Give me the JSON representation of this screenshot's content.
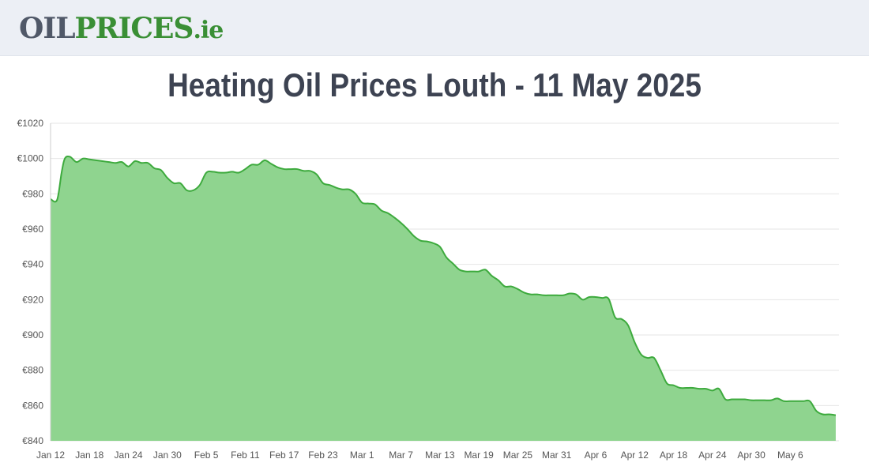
{
  "logo": {
    "part1": "OIL",
    "part2": "PRICES",
    "part3": ".ie"
  },
  "colors": {
    "line": "#3daa3d",
    "fill": "#8fd48f",
    "grid": "#e6e6e6",
    "title": "#3d4352"
  },
  "chart_data": {
    "type": "area",
    "title": "Heating Oil Prices Louth - 11 May 2025",
    "xlabel": "",
    "ylabel": "",
    "ylim": [
      840,
      1020
    ],
    "grid": true,
    "y_ticks": [
      "€1020",
      "€1000",
      "€980",
      "€960",
      "€940",
      "€920",
      "€900",
      "€880",
      "€860",
      "€840"
    ],
    "x_ticks": [
      "Jan 12",
      "Jan 18",
      "Jan 24",
      "Jan 30",
      "Feb 5",
      "Feb 11",
      "Feb 17",
      "Feb 23",
      "Mar 1",
      "Mar 7",
      "Mar 13",
      "Mar 19",
      "Mar 25",
      "Mar 31",
      "Apr 6",
      "Apr 12",
      "Apr 18",
      "Apr 24",
      "Apr 30",
      "May 6"
    ],
    "x_start": "2025-01-12",
    "series": [
      {
        "values": [
          [
            0,
            977
          ],
          [
            1,
            976.5
          ],
          [
            1.7,
            992
          ],
          [
            2.2,
            1000
          ],
          [
            3,
            1001
          ],
          [
            4,
            998
          ],
          [
            5,
            1000
          ],
          [
            6,
            999.5
          ],
          [
            7,
            999
          ],
          [
            8,
            998.5
          ],
          [
            9,
            998
          ],
          [
            10,
            997.5
          ],
          [
            11,
            998
          ],
          [
            12,
            995.5
          ],
          [
            13,
            998.5
          ],
          [
            14,
            997.5
          ],
          [
            15,
            997.5
          ],
          [
            16,
            994.5
          ],
          [
            17,
            993.5
          ],
          [
            18,
            989
          ],
          [
            19,
            986
          ],
          [
            20,
            986
          ],
          [
            21,
            982
          ],
          [
            22,
            982
          ],
          [
            23,
            985
          ],
          [
            24,
            992
          ],
          [
            25,
            992.5
          ],
          [
            26,
            992
          ],
          [
            27,
            992
          ],
          [
            28,
            992.5
          ],
          [
            29,
            992
          ],
          [
            30,
            994
          ],
          [
            31,
            996.5
          ],
          [
            32,
            996.5
          ],
          [
            33,
            999
          ],
          [
            34,
            997
          ],
          [
            35,
            995
          ],
          [
            36,
            994
          ],
          [
            37,
            994
          ],
          [
            38,
            994
          ],
          [
            39,
            993
          ],
          [
            40,
            993
          ],
          [
            41,
            991
          ],
          [
            42,
            986
          ],
          [
            43,
            985
          ],
          [
            44,
            983.5
          ],
          [
            45,
            982.5
          ],
          [
            46,
            982.5
          ],
          [
            47,
            980
          ],
          [
            48,
            975
          ],
          [
            49,
            974.5
          ],
          [
            50,
            974
          ],
          [
            51,
            970.5
          ],
          [
            52,
            969
          ],
          [
            53,
            966.5
          ],
          [
            54,
            963.5
          ],
          [
            55,
            960
          ],
          [
            56,
            956
          ],
          [
            57,
            953.5
          ],
          [
            58,
            953
          ],
          [
            59,
            952
          ],
          [
            60,
            950
          ],
          [
            61,
            944
          ],
          [
            62,
            940.5
          ],
          [
            63,
            937
          ],
          [
            64,
            936
          ],
          [
            65,
            936
          ],
          [
            66,
            936
          ],
          [
            67,
            937
          ],
          [
            68,
            933.5
          ],
          [
            69,
            931
          ],
          [
            70,
            927.5
          ],
          [
            71,
            927.5
          ],
          [
            72,
            926
          ],
          [
            73,
            924
          ],
          [
            74,
            923
          ],
          [
            75,
            923
          ],
          [
            76,
            922.5
          ],
          [
            77,
            922.5
          ],
          [
            78,
            922.5
          ],
          [
            79,
            922.5
          ],
          [
            80,
            923.5
          ],
          [
            81,
            923
          ],
          [
            82,
            920
          ],
          [
            83,
            921.5
          ],
          [
            84,
            921.5
          ],
          [
            85,
            921
          ],
          [
            86,
            920.5
          ],
          [
            87,
            910
          ],
          [
            88,
            909
          ],
          [
            89,
            905.5
          ],
          [
            90,
            896
          ],
          [
            91,
            889
          ],
          [
            92,
            887
          ],
          [
            93,
            887
          ],
          [
            94,
            880
          ],
          [
            95,
            872.5
          ],
          [
            96,
            871.5
          ],
          [
            97,
            870
          ],
          [
            98,
            870
          ],
          [
            99,
            870
          ],
          [
            100,
            869.5
          ],
          [
            101,
            869.5
          ],
          [
            102,
            868.5
          ],
          [
            103,
            869.5
          ],
          [
            104,
            863.5
          ],
          [
            105,
            863.5
          ],
          [
            106,
            863.5
          ],
          [
            107,
            863.5
          ],
          [
            108,
            863
          ],
          [
            109,
            863
          ],
          [
            110,
            863
          ],
          [
            111,
            863
          ],
          [
            112,
            864
          ],
          [
            113,
            862.5
          ],
          [
            114,
            862.5
          ],
          [
            115,
            862.5
          ],
          [
            116,
            862.5
          ],
          [
            117,
            862.5
          ],
          [
            118,
            857
          ],
          [
            119,
            855
          ],
          [
            120,
            855
          ],
          [
            121,
            854.5
          ]
        ]
      }
    ]
  }
}
